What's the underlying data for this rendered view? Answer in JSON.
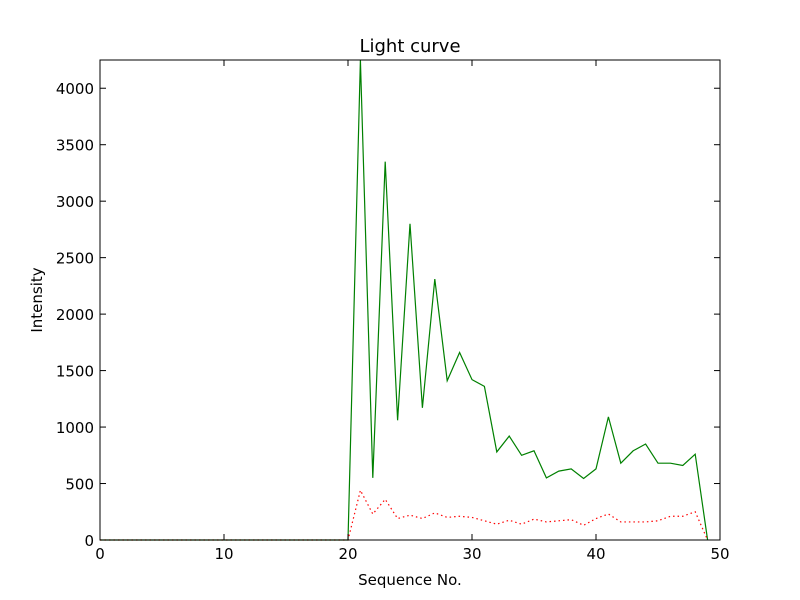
{
  "chart_data": {
    "type": "line",
    "title": "Light curve",
    "xlabel": "Sequence No.",
    "ylabel": "Intensity",
    "xlim": [
      0,
      50
    ],
    "ylim": [
      0,
      4250
    ],
    "xticks": [
      0,
      10,
      20,
      30,
      40,
      50
    ],
    "yticks": [
      0,
      500,
      1000,
      1500,
      2000,
      2500,
      3000,
      3500,
      4000
    ],
    "grid": false,
    "series": [
      {
        "color": "#008000",
        "style": "solid",
        "x": [
          0,
          1,
          2,
          3,
          4,
          5,
          6,
          7,
          8,
          9,
          10,
          11,
          12,
          13,
          14,
          15,
          16,
          17,
          18,
          19,
          20,
          21,
          22,
          23,
          24,
          25,
          26,
          27,
          28,
          29,
          30,
          31,
          32,
          33,
          34,
          35,
          36,
          37,
          38,
          39,
          40,
          41,
          42,
          43,
          44,
          45,
          46,
          47,
          48,
          49
        ],
        "values": [
          0,
          0,
          0,
          0,
          0,
          0,
          0,
          0,
          0,
          0,
          0,
          0,
          0,
          0,
          0,
          0,
          0,
          0,
          0,
          0,
          0,
          4250,
          550,
          3350,
          1060,
          2800,
          1170,
          2310,
          1410,
          1660,
          1420,
          1360,
          780,
          920,
          750,
          790,
          550,
          610,
          630,
          545,
          630,
          1090,
          680,
          790,
          850,
          680,
          680,
          660,
          760,
          0
        ]
      },
      {
        "color": "#ff0000",
        "style": "dotted",
        "x": [
          0,
          1,
          2,
          3,
          4,
          5,
          6,
          7,
          8,
          9,
          10,
          11,
          12,
          13,
          14,
          15,
          16,
          17,
          18,
          19,
          20,
          21,
          22,
          23,
          24,
          25,
          26,
          27,
          28,
          29,
          30,
          31,
          32,
          33,
          34,
          35,
          36,
          37,
          38,
          39,
          40,
          41,
          42,
          43,
          44,
          45,
          46,
          47,
          48,
          49
        ],
        "values": [
          0,
          0,
          0,
          0,
          0,
          0,
          0,
          0,
          0,
          0,
          0,
          0,
          0,
          0,
          0,
          0,
          0,
          0,
          0,
          0,
          0,
          440,
          230,
          360,
          190,
          220,
          190,
          240,
          200,
          210,
          200,
          170,
          140,
          175,
          140,
          185,
          160,
          170,
          180,
          130,
          190,
          230,
          160,
          160,
          160,
          170,
          210,
          210,
          250,
          0
        ]
      }
    ]
  }
}
